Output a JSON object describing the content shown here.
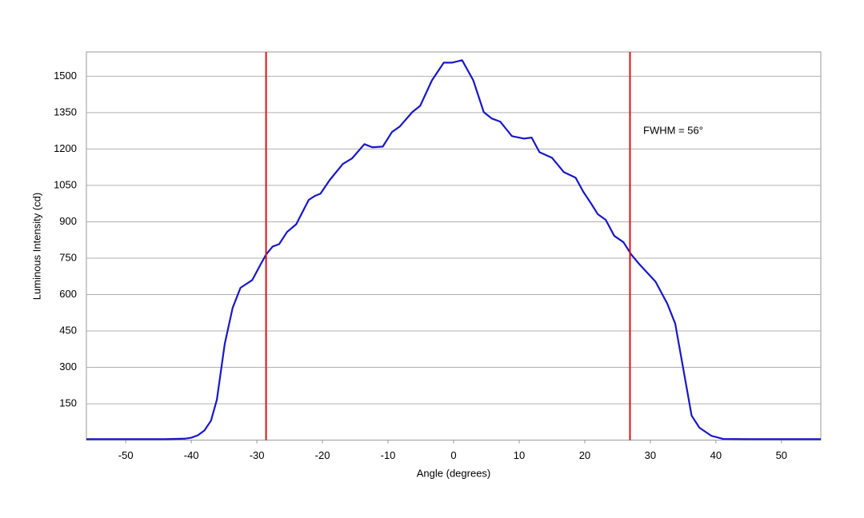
{
  "chart_data": {
    "type": "line",
    "x_label": "Angle (degrees)",
    "y_label": "Luminous Intensity (cd)",
    "annotation": "FWHM = 56°",
    "x": [
      -56,
      -50,
      -44,
      -41,
      -40,
      -39,
      -38,
      -37,
      -36.1,
      -34.9,
      -33.7,
      -32.5,
      -30.7,
      -29.4,
      -28.6,
      -27.6,
      -26.6,
      -25.4,
      -24,
      -22.1,
      -21.2,
      -20.3,
      -18.9,
      -16.9,
      -15.5,
      -13.6,
      -12.4,
      -10.8,
      -9.4,
      -8.2,
      -6.3,
      -5.1,
      -3.3,
      -1.5,
      -0.2,
      1.3,
      3.0,
      4.6,
      5.8,
      7.1,
      8.9,
      10.7,
      11.9,
      13.1,
      15.0,
      16.8,
      18.6,
      19.8,
      21.0,
      22.0,
      23.2,
      24.5,
      25.9,
      27.1,
      28.3,
      30.8,
      32.6,
      33.8,
      35.0,
      36.3,
      37.5,
      39.3,
      41.1,
      45,
      50,
      56
    ],
    "values": [
      4,
      4,
      4,
      6,
      10,
      20,
      40,
      80,
      167,
      397,
      545,
      628,
      660,
      726,
      765,
      798,
      808,
      858,
      890,
      990,
      1006,
      1016,
      1072,
      1138,
      1161,
      1220,
      1207,
      1210,
      1270,
      1293,
      1352,
      1378,
      1483,
      1556,
      1556,
      1566,
      1483,
      1352,
      1326,
      1313,
      1253,
      1243,
      1247,
      1187,
      1164,
      1105,
      1082,
      1023,
      974,
      931,
      908,
      842,
      816,
      765,
      726,
      653,
      562,
      480,
      298,
      101,
      51,
      18,
      5,
      4,
      4,
      4
    ],
    "color": "#1818c8",
    "vlines": [
      -28.6,
      26.9
    ],
    "vline_color": "#dd1111",
    "xlim": [
      -56,
      56
    ],
    "ylim": [
      0,
      1600
    ],
    "xticks": [
      -50,
      -40,
      -30,
      -20,
      -10,
      0,
      10,
      20,
      30,
      40,
      50
    ],
    "yticks": [
      150,
      300,
      450,
      600,
      750,
      900,
      1050,
      1200,
      1350,
      1500
    ],
    "grid": true
  }
}
